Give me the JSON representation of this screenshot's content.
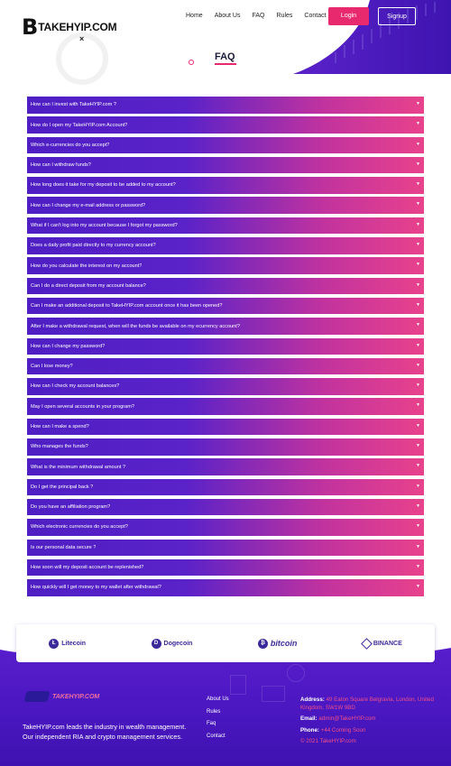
{
  "brand": {
    "mark": "B",
    "name": "TAKEHYIP.COM",
    "close_glyph": "×"
  },
  "nav": {
    "items": [
      "Home",
      "About Us",
      "FAQ",
      "Rules",
      "Contact"
    ],
    "login": "Login",
    "signup": "Signup"
  },
  "page": {
    "title": "FAQ"
  },
  "faq": {
    "caret": "▼",
    "questions": [
      "How can I invest with TakeHYIP.com ?",
      "How do I open my TakeHYIP.com Account?",
      "Which e-currencies do you accept?",
      "How can I withdraw funds?",
      "How long does it take for my deposit to be added to my account?",
      "How can I change my e-mail address or password?",
      "What if I can't log into my account because I forgot my password?",
      "Does a daily profit paid directly to my currency account?",
      "How do you calculate the interest on my account?",
      "Can I do a direct deposit from my account balance?",
      "Can I make an additional deposit to TakeHYIP.com account once it has been opened?",
      "After I make a withdrawal request, when will the funds be available on my ecurrency account?",
      "How can I change my password?",
      "Can I lose money?",
      "How can I check my account balances?",
      "May I open several accounts in your program?",
      "How can I make a spend?",
      "Who manages the funds?",
      "What is the minimum withdrawal amount ?",
      "Do I get the principal back ?",
      "Do you have an affiliation program?",
      "Which electronic currencies do you accept?",
      "Is our personal data secure ?",
      "How soon will my deposit account be replenished?",
      "How quickly will I get money to my wallet after withdrawal?"
    ]
  },
  "partners": {
    "litecoin": {
      "label": "Litecoin",
      "icon": "Ł"
    },
    "dogecoin": {
      "label": "Dogecoin",
      "icon": "D"
    },
    "bitcoin": {
      "label": "bitcoin",
      "icon": "₿"
    },
    "binance": {
      "label": "BINANCE"
    }
  },
  "footer": {
    "logo_text": "TAKEHYIP.COM",
    "description": "TakeHYIP.com leads the industry in wealth management. Our independent RIA and crypto management services.",
    "links": [
      "About Us",
      "Rules",
      "Faq",
      "Contact"
    ],
    "address_label": "Address:",
    "address_value": "49 Eaton Square Belgravia, London, United Kingdom, SW1W 9BD",
    "email_label": "Email:",
    "email_value": "admin@TakeHYIP.com",
    "phone_label": "Phone:",
    "phone_value": "+44 Coming Soon",
    "copyright": "© 2021 TakeHYIP.com"
  },
  "colors": {
    "accent": "#e8296d",
    "primary": "#4f1fc4",
    "footer_bg": "#4a17c0"
  }
}
